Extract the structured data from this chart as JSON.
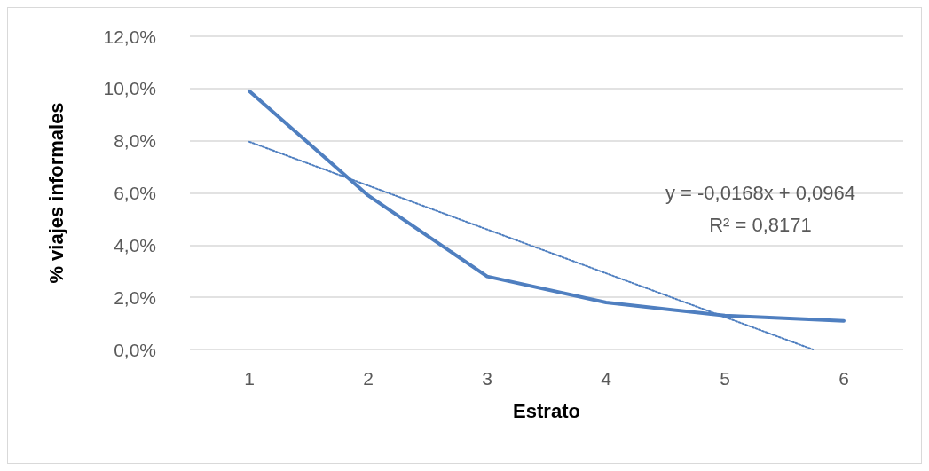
{
  "chart_data": {
    "type": "line",
    "xlabel": "Estrato",
    "ylabel": "% viajes informales",
    "x": [
      1,
      2,
      3,
      4,
      5,
      6
    ],
    "series": [
      {
        "color": "#4f7fc0",
        "values": [
          9.9,
          5.9,
          2.8,
          1.8,
          1.3,
          1.1
        ],
        "line_style": "solid"
      },
      {
        "color": "#4f7fc0",
        "x": [
          1,
          5.74
        ],
        "values": [
          7.96,
          0
        ],
        "line_style": "dotted"
      }
    ],
    "xlim": [
      0.5,
      6.5
    ],
    "xticks": [
      1,
      2,
      3,
      4,
      5,
      6
    ],
    "ylim": [
      0,
      12
    ],
    "yticks": [
      {
        "value": 0,
        "label": "0,0%"
      },
      {
        "value": 2,
        "label": "2,0%"
      },
      {
        "value": 4,
        "label": "4,0%"
      },
      {
        "value": 6,
        "label": "6,0%"
      },
      {
        "value": 8,
        "label": "8,0%"
      },
      {
        "value": 10,
        "label": "10,0%"
      },
      {
        "value": 12,
        "label": "12,0%"
      }
    ],
    "grid": "y",
    "marker": "none",
    "annotations": [
      "y = -0,0168x + 0,0964",
      "R² = 0,8171"
    ]
  }
}
